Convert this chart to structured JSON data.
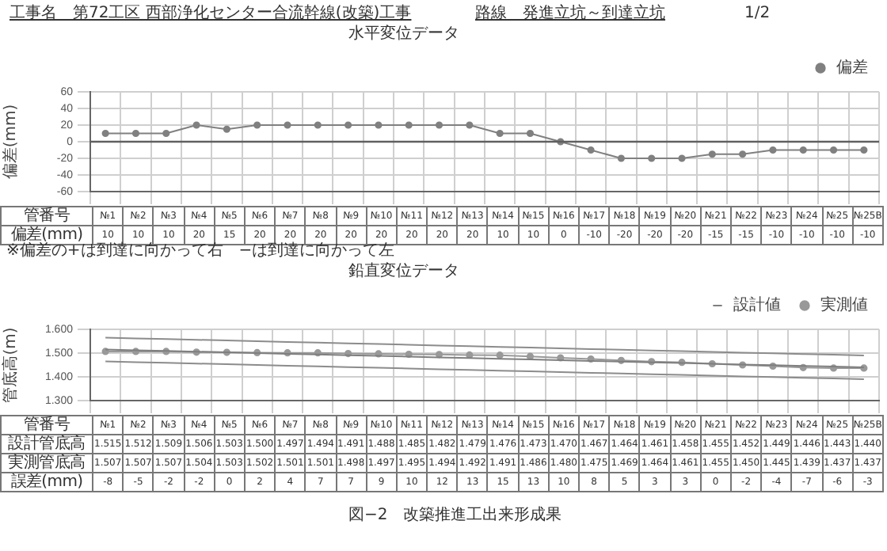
{
  "chart_data": [
    {
      "type": "line",
      "title": "水平変位データ",
      "xlabel": "管番号",
      "ylabel": "偏差(mm)",
      "categories": [
        "№1",
        "№2",
        "№3",
        "№4",
        "№5",
        "№6",
        "№7",
        "№8",
        "№9",
        "№10",
        "№11",
        "№12",
        "№13",
        "№14",
        "№15",
        "№16",
        "№17",
        "№18",
        "№19",
        "№20",
        "№21",
        "№22",
        "№23",
        "№24",
        "№25",
        "№25B"
      ],
      "series": [
        {
          "name": "偏差",
          "color": "#808080",
          "marker": "circle",
          "values": [
            10,
            10,
            10,
            20,
            15,
            20,
            20,
            20,
            20,
            20,
            20,
            20,
            20,
            10,
            10,
            0,
            -10,
            -20,
            -20,
            -20,
            -15,
            -15,
            -10,
            -10,
            -10,
            -10
          ],
          "value_labels": [
            "10",
            "10",
            "10",
            "20",
            "15",
            "20",
            "20",
            "20",
            "20",
            "20",
            "20",
            "20",
            "20",
            "10",
            "10",
            "0",
            "-10",
            "-20",
            "-20",
            "-20",
            "-15",
            "-15",
            "-10",
            "-10",
            "-10",
            "-10"
          ]
        }
      ],
      "ylim": [
        -60,
        60
      ],
      "yticks": [
        -60,
        -40,
        -20,
        0,
        20,
        40,
        60
      ],
      "grid": true,
      "legend": "top right",
      "tick_labels": "y",
      "ref_lines": [
        {
          "axis": "y",
          "value": 0,
          "color": "#606060"
        }
      ],
      "annotations": [
        "工事名　第72工区 西部浄化センター合流幹線(改築)工事",
        "路線　発進立坑～到達立坑",
        "1/2",
        "偏差(mm)",
        "※偏差の+は到達に向かって右　−は到達に向かって左"
      ]
    },
    {
      "type": "line",
      "title": "鉛直変位データ",
      "xlabel": "管番号",
      "ylabel": "管底高(m)",
      "categories": [
        "№1",
        "№2",
        "№3",
        "№4",
        "№5",
        "№6",
        "№7",
        "№8",
        "№9",
        "№10",
        "№11",
        "№12",
        "№13",
        "№14",
        "№15",
        "№16",
        "№17",
        "№18",
        "№19",
        "№20",
        "№21",
        "№22",
        "№23",
        "№24",
        "№25",
        "№25B"
      ],
      "series": [
        {
          "name": "設計値",
          "color": "#7f7f7f",
          "marker": "none",
          "values": [
            1.515,
            1.512,
            1.509,
            1.506,
            1.503,
            1.5,
            1.497,
            1.494,
            1.491,
            1.488,
            1.485,
            1.482,
            1.479,
            1.476,
            1.473,
            1.47,
            1.467,
            1.464,
            1.461,
            1.458,
            1.455,
            1.452,
            1.449,
            1.446,
            1.443,
            1.44
          ],
          "value_labels": [
            "1.515",
            "1.512",
            "1.509",
            "1.506",
            "1.503",
            "1.500",
            "1.497",
            "1.494",
            "1.491",
            "1.488",
            "1.485",
            "1.482",
            "1.479",
            "1.476",
            "1.473",
            "1.470",
            "1.467",
            "1.464",
            "1.461",
            "1.458",
            "1.455",
            "1.452",
            "1.449",
            "1.446",
            "1.443",
            "1.440"
          ]
        },
        {
          "name": "実測値",
          "color": "#999999",
          "marker": "circle",
          "values": [
            1.507,
            1.507,
            1.507,
            1.504,
            1.503,
            1.502,
            1.501,
            1.501,
            1.498,
            1.497,
            1.495,
            1.494,
            1.492,
            1.491,
            1.486,
            1.48,
            1.475,
            1.469,
            1.464,
            1.461,
            1.455,
            1.45,
            1.445,
            1.439,
            1.437,
            1.437
          ],
          "value_labels": [
            "1.507",
            "1.507",
            "1.507",
            "1.504",
            "1.503",
            "1.502",
            "1.501",
            "1.501",
            "1.498",
            "1.497",
            "1.495",
            "1.494",
            "1.492",
            "1.491",
            "1.486",
            "1.480",
            "1.475",
            "1.469",
            "1.464",
            "1.461",
            "1.455",
            "1.450",
            "1.445",
            "1.439",
            "1.437",
            "1.437"
          ]
        },
        {
          "color": "#8c8c8c",
          "marker": "none",
          "values": [
            1.565,
            1.562,
            1.559,
            1.556,
            1.553,
            1.55,
            1.547,
            1.544,
            1.541,
            1.538,
            1.535,
            1.532,
            1.529,
            1.526,
            1.523,
            1.52,
            1.517,
            1.514,
            1.511,
            1.508,
            1.505,
            1.502,
            1.499,
            1.496,
            1.493,
            1.49
          ]
        },
        {
          "color": "#8c8c8c",
          "marker": "none",
          "values": [
            1.465,
            1.462,
            1.459,
            1.456,
            1.453,
            1.45,
            1.447,
            1.444,
            1.441,
            1.438,
            1.435,
            1.432,
            1.429,
            1.426,
            1.423,
            1.42,
            1.417,
            1.414,
            1.411,
            1.408,
            1.405,
            1.402,
            1.399,
            1.396,
            1.393,
            1.39
          ]
        }
      ],
      "ylim": [
        1.3,
        1.6
      ],
      "yticks": [
        {
          "value": 1.3,
          "label": "1.300"
        },
        {
          "value": 1.4,
          "label": "1.400"
        },
        {
          "value": 1.5,
          "label": "1.500"
        },
        {
          "value": 1.6,
          "label": "1.600"
        }
      ],
      "grid": true,
      "legend": "top right",
      "tick_labels": "y",
      "annotations": [
        "設計管底高",
        "実測管底高",
        "誤差(mm)",
        "図−2　改築推進工出来形成果",
        "-8",
        "-5",
        "-2",
        "-2",
        "0",
        "2",
        "4",
        "7",
        "7",
        "9",
        "10",
        "12",
        "13",
        "15",
        "13",
        "10",
        "8",
        "5",
        "3",
        "3",
        "0",
        "-2",
        "-4",
        "-7",
        "-6",
        "-3"
      ]
    }
  ]
}
